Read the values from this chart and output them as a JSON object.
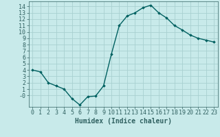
{
  "x": [
    0,
    1,
    2,
    3,
    4,
    5,
    6,
    7,
    8,
    9,
    10,
    11,
    12,
    13,
    14,
    15,
    16,
    17,
    18,
    19,
    20,
    21,
    22,
    23
  ],
  "y": [
    4,
    3.7,
    2,
    1.5,
    1,
    -0.5,
    -1.5,
    -0.2,
    -0.1,
    1.5,
    6.5,
    11,
    12.5,
    13,
    13.8,
    14.2,
    13,
    12.2,
    11,
    10.3,
    9.5,
    9,
    8.7,
    8.4
  ],
  "line_color": "#006060",
  "marker": "D",
  "marker_size": 1.8,
  "bg_color": "#c8eaea",
  "grid_color": "#a8d0d0",
  "xlabel": "Humidex (Indice chaleur)",
  "xlim": [
    -0.5,
    23.5
  ],
  "ylim": [
    -1.8,
    14.8
  ],
  "yticks": [
    0,
    1,
    2,
    3,
    4,
    5,
    6,
    7,
    8,
    9,
    10,
    11,
    12,
    13,
    14
  ],
  "xticks": [
    0,
    1,
    2,
    3,
    4,
    5,
    6,
    7,
    8,
    9,
    10,
    11,
    12,
    13,
    14,
    15,
    16,
    17,
    18,
    19,
    20,
    21,
    22,
    23
  ],
  "font_color": "#2f6060",
  "font_size": 6,
  "xlabel_fontsize": 7,
  "linewidth": 1.0
}
